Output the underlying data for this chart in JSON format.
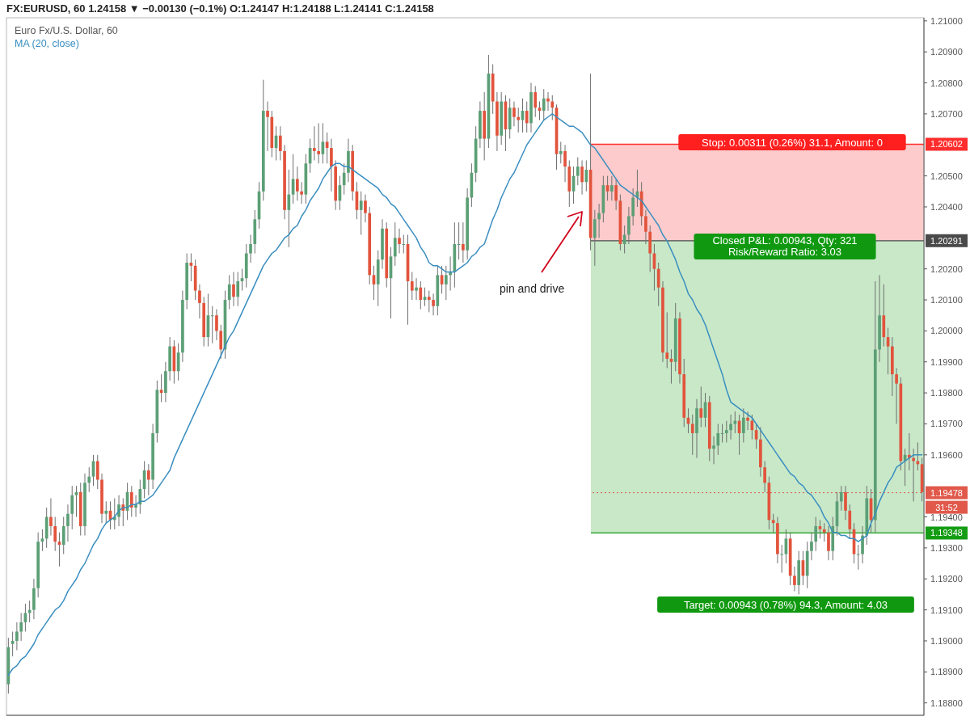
{
  "chart_data": {
    "type": "candlestick",
    "title": "FX:EURUSD, 60  1.24158 ▼ −0.00130 (−0.1%)  O:1.24147  H:1.24188  L:1.24141  C:1.24158",
    "subtitle": "Euro Fx/U.S. Dollar, 60",
    "categories": [
      null,
      null,
      null,
      null,
      null,
      null,
      null,
      null,
      null,
      null,
      null,
      null,
      null,
      null,
      null,
      null,
      null,
      null,
      null,
      null,
      null,
      null,
      null,
      null,
      null,
      null,
      null,
      null,
      null,
      null,
      null,
      null,
      null,
      null,
      null,
      null,
      null,
      null,
      null,
      null,
      null,
      null,
      null,
      null,
      null,
      null,
      null,
      null,
      null,
      null,
      null,
      null,
      null,
      null,
      null,
      null,
      null,
      null,
      null,
      null,
      null,
      null,
      null,
      null,
      null,
      null,
      null,
      null,
      null,
      null,
      null,
      null,
      null,
      null,
      null,
      null,
      null,
      null,
      null,
      null,
      null,
      null,
      null,
      null,
      null,
      null,
      null,
      null,
      null,
      null,
      null,
      null,
      null,
      null,
      null,
      null,
      null,
      null,
      null,
      null,
      null,
      null,
      null,
      null,
      null,
      null,
      null,
      null,
      null,
      null,
      null,
      null,
      null,
      null,
      null,
      null,
      null,
      null,
      null,
      null,
      null,
      null,
      null,
      null,
      null,
      null,
      null,
      null,
      null,
      null,
      null,
      null,
      null,
      null,
      null,
      null,
      null,
      null,
      null,
      null,
      null,
      null,
      null,
      null,
      null,
      null,
      null,
      null,
      null,
      null,
      null,
      null,
      null,
      null,
      null,
      null,
      null,
      null,
      null,
      null,
      null,
      null,
      null,
      null,
      null,
      null,
      null,
      null,
      null,
      null,
      null,
      null,
      null,
      null,
      null,
      null,
      null,
      null,
      null,
      null,
      null,
      null,
      null,
      null,
      null,
      null,
      null,
      null,
      null,
      null,
      null,
      null,
      null,
      null,
      null,
      null,
      null,
      null,
      null,
      null,
      null,
      null,
      null,
      null,
      null,
      null,
      null,
      null,
      null,
      null,
      null,
      null,
      null,
      null,
      null,
      null
    ],
    "ohlc": [
      [
        1.1886,
        1.1901,
        1.1883,
        1.1898
      ],
      [
        1.1899,
        1.1903,
        1.1895,
        1.19
      ],
      [
        1.19,
        1.1906,
        1.1897,
        1.1903
      ],
      [
        1.1903,
        1.1909,
        1.19,
        1.1906
      ],
      [
        1.1906,
        1.1912,
        1.1903,
        1.1909
      ],
      [
        1.1909,
        1.1913,
        1.1906,
        1.191
      ],
      [
        1.191,
        1.192,
        1.1907,
        1.1917
      ],
      [
        1.1917,
        1.1935,
        1.1914,
        1.1932
      ],
      [
        1.1932,
        1.1936,
        1.1929,
        1.1933
      ],
      [
        1.1933,
        1.1943,
        1.193,
        1.194
      ],
      [
        1.194,
        1.1946,
        1.1934,
        1.1937
      ],
      [
        1.1937,
        1.194,
        1.1929,
        1.1932
      ],
      [
        1.1932,
        1.1935,
        1.1924,
        1.1931
      ],
      [
        1.1931,
        1.194,
        1.1928,
        1.1937
      ],
      [
        1.1937,
        1.1944,
        1.1932,
        1.1941
      ],
      [
        1.1941,
        1.195,
        1.1936,
        1.1947
      ],
      [
        1.1947,
        1.195,
        1.194,
        1.1948
      ],
      [
        1.1948,
        1.1951,
        1.1934,
        1.1937
      ],
      [
        1.1937,
        1.1954,
        1.1934,
        1.1951
      ],
      [
        1.1951,
        1.1956,
        1.1948,
        1.1953
      ],
      [
        1.1953,
        1.196,
        1.195,
        1.1958
      ],
      [
        1.1958,
        1.196,
        1.1949,
        1.1952
      ],
      [
        1.1952,
        1.1954,
        1.1938,
        1.1941
      ],
      [
        1.1941,
        1.1945,
        1.1938,
        1.1942
      ],
      [
        1.1942,
        1.1945,
        1.1936,
        1.1939
      ],
      [
        1.1939,
        1.1946,
        1.1936,
        1.194
      ],
      [
        1.194,
        1.1947,
        1.1937,
        1.1944
      ],
      [
        1.1944,
        1.1946,
        1.1937,
        1.1942
      ],
      [
        1.1942,
        1.1951,
        1.1939,
        1.1948
      ],
      [
        1.1948,
        1.195,
        1.194,
        1.1943
      ],
      [
        1.1943,
        1.1947,
        1.194,
        1.1944
      ],
      [
        1.1944,
        1.1952,
        1.1941,
        1.1949
      ],
      [
        1.1949,
        1.1958,
        1.1946,
        1.1955
      ],
      [
        1.1955,
        1.1957,
        1.1947,
        1.1952
      ],
      [
        1.1952,
        1.197,
        1.1949,
        1.1967
      ],
      [
        1.1967,
        1.1984,
        1.1964,
        1.1981
      ],
      [
        1.1981,
        1.1986,
        1.1977,
        1.198
      ],
      [
        1.198,
        1.199,
        1.1977,
        1.1987
      ],
      [
        1.1987,
        1.1998,
        1.1984,
        1.1995
      ],
      [
        1.1995,
        1.1997,
        1.1983,
        1.1987
      ],
      [
        1.1987,
        1.1996,
        1.1984,
        1.1993
      ],
      [
        1.1993,
        1.2013,
        1.199,
        1.201
      ],
      [
        1.201,
        1.2025,
        1.2007,
        1.2022
      ],
      [
        1.2022,
        1.2025,
        1.2016,
        1.2021
      ],
      [
        1.2021,
        1.2023,
        1.201,
        1.2013
      ],
      [
        1.2013,
        1.2015,
        1.2004,
        1.2009
      ],
      [
        1.2009,
        1.2011,
        1.1995,
        1.1998
      ],
      [
        1.1998,
        1.2012,
        1.1995,
        1.2005
      ],
      [
        1.2005,
        1.2008,
        1.1996,
        1.2005
      ],
      [
        1.2005,
        1.2007,
        1.1997,
        1.2
      ],
      [
        1.2,
        1.2002,
        1.1991,
        1.1994
      ],
      [
        1.1994,
        1.2013,
        1.1991,
        1.201
      ],
      [
        1.201,
        1.2018,
        1.2007,
        1.2015
      ],
      [
        1.2015,
        1.2019,
        1.2008,
        1.2011
      ],
      [
        1.2011,
        1.2019,
        1.2008,
        1.2016
      ],
      [
        1.2016,
        1.202,
        1.2013,
        1.2017
      ],
      [
        1.2017,
        1.2028,
        1.2014,
        1.2025
      ],
      [
        1.2025,
        1.2031,
        1.2022,
        1.2028
      ],
      [
        1.2028,
        1.2039,
        1.2025,
        1.2036
      ],
      [
        1.2036,
        1.2048,
        1.2033,
        1.2045
      ],
      [
        1.2045,
        1.2081,
        1.2042,
        1.2071
      ],
      [
        1.2071,
        1.2074,
        1.2058,
        1.2069
      ],
      [
        1.2069,
        1.2071,
        1.2056,
        1.2059
      ],
      [
        1.2059,
        1.2066,
        1.2055,
        1.2063
      ],
      [
        1.2063,
        1.2066,
        1.2055,
        1.2058
      ],
      [
        1.2058,
        1.206,
        1.2036,
        1.2039
      ],
      [
        1.2039,
        1.2052,
        1.2027,
        1.2044
      ],
      [
        1.2044,
        1.2057,
        1.2041,
        1.2049
      ],
      [
        1.2049,
        1.2053,
        1.2042,
        1.2045
      ],
      [
        1.2045,
        1.2048,
        1.2041,
        1.2044
      ],
      [
        1.2044,
        1.2057,
        1.2041,
        1.2054
      ],
      [
        1.2054,
        1.2062,
        1.2051,
        1.2059
      ],
      [
        1.2059,
        1.2066,
        1.2055,
        1.2058
      ],
      [
        1.2058,
        1.2067,
        1.2054,
        1.2057
      ],
      [
        1.2057,
        1.2067,
        1.2054,
        1.2061
      ],
      [
        1.2061,
        1.2064,
        1.2054,
        1.2059
      ],
      [
        1.2059,
        1.2062,
        1.2045,
        1.2053
      ],
      [
        1.2053,
        1.2055,
        1.2039,
        1.2042
      ],
      [
        1.2042,
        1.205,
        1.2039,
        1.2047
      ],
      [
        1.2047,
        1.2054,
        1.2044,
        1.2051
      ],
      [
        1.2051,
        1.2062,
        1.2048,
        1.2058
      ],
      [
        1.2058,
        1.206,
        1.2042,
        1.2045
      ],
      [
        1.2045,
        1.2048,
        1.2036,
        1.2039
      ],
      [
        1.2039,
        1.2045,
        1.2031,
        1.2042
      ],
      [
        1.2042,
        1.2044,
        1.2035,
        1.2038
      ],
      [
        1.2038,
        1.204,
        1.2015,
        1.2018
      ],
      [
        1.2018,
        1.2021,
        1.201,
        1.2015
      ],
      [
        1.2015,
        1.2026,
        1.2008,
        1.2023
      ],
      [
        1.2023,
        1.2036,
        1.202,
        1.2033
      ],
      [
        1.2033,
        1.2035,
        1.2014,
        1.2017
      ],
      [
        1.2017,
        1.2027,
        1.2004,
        1.2024
      ],
      [
        1.2024,
        1.2035,
        1.2021,
        1.203
      ],
      [
        1.203,
        1.2033,
        1.2025,
        1.2028
      ],
      [
        1.2028,
        1.2031,
        1.2025,
        1.2028
      ],
      [
        1.2028,
        1.2031,
        1.2002,
        1.2016
      ],
      [
        1.2016,
        1.2019,
        1.201,
        1.2013
      ],
      [
        1.2013,
        1.2017,
        1.201,
        1.2014
      ],
      [
        1.2014,
        1.2016,
        1.2007,
        1.201
      ],
      [
        1.201,
        1.2014,
        1.2008,
        1.2011
      ],
      [
        1.2011,
        1.2013,
        1.2006,
        1.201
      ],
      [
        1.201,
        1.2012,
        1.2005,
        1.2008
      ],
      [
        1.2008,
        1.2021,
        1.2005,
        1.2018
      ],
      [
        1.2018,
        1.2021,
        1.2012,
        1.2015
      ],
      [
        1.2015,
        1.2021,
        1.201,
        1.2018
      ],
      [
        1.2018,
        1.2024,
        1.2013,
        1.2019
      ],
      [
        1.2019,
        1.2035,
        1.2014,
        1.2028
      ],
      [
        1.2028,
        1.2035,
        1.2023,
        1.2028
      ],
      [
        1.2028,
        1.2035,
        1.2022,
        1.2026
      ],
      [
        1.2026,
        1.2046,
        1.2023,
        1.2043
      ],
      [
        1.2043,
        1.2054,
        1.204,
        1.2051
      ],
      [
        1.2051,
        1.2066,
        1.2048,
        1.2062
      ],
      [
        1.2062,
        1.2074,
        1.2059,
        1.2071
      ],
      [
        1.2071,
        1.2077,
        1.2055,
        1.2062
      ],
      [
        1.2062,
        1.2089,
        1.2059,
        1.2083
      ],
      [
        1.2083,
        1.2086,
        1.207,
        1.2074
      ],
      [
        1.2074,
        1.2077,
        1.2058,
        1.2063
      ],
      [
        1.2063,
        1.2077,
        1.206,
        1.2074
      ],
      [
        1.2074,
        1.2076,
        1.2058,
        1.2065
      ],
      [
        1.2065,
        1.2075,
        1.2062,
        1.2072
      ],
      [
        1.2072,
        1.2074,
        1.2066,
        1.2069
      ],
      [
        1.2069,
        1.2072,
        1.2064,
        1.2068
      ],
      [
        1.2068,
        1.2075,
        1.2064,
        1.2071
      ],
      [
        1.2071,
        1.2074,
        1.2064,
        1.2067
      ],
      [
        1.2067,
        1.208,
        1.2064,
        1.2077
      ],
      [
        1.2077,
        1.2079,
        1.2069,
        1.2072
      ],
      [
        1.2072,
        1.2074,
        1.2068,
        1.2071
      ],
      [
        1.2071,
        1.2078,
        1.2068,
        1.2075
      ],
      [
        1.2075,
        1.2077,
        1.2071,
        1.2074
      ],
      [
        1.2074,
        1.2076,
        1.2068,
        1.2072
      ],
      [
        1.2072,
        1.2073,
        1.2052,
        1.2057
      ],
      [
        1.2057,
        1.2061,
        1.2054,
        1.2058
      ],
      [
        1.2058,
        1.206,
        1.2048,
        1.2053
      ],
      [
        1.2053,
        1.2055,
        1.204,
        1.2045
      ],
      [
        1.2045,
        1.2053,
        1.2041,
        1.205
      ],
      [
        1.205,
        1.2056,
        1.2047,
        1.2053
      ],
      [
        1.2053,
        1.2055,
        1.2044,
        1.2048
      ],
      [
        1.2048,
        1.2055,
        1.2045,
        1.2052
      ],
      [
        1.2052,
        1.2083,
        1.2026,
        1.203
      ],
      [
        1.203,
        1.2039,
        1.2021,
        1.2036
      ],
      [
        1.2036,
        1.2041,
        1.203,
        1.2038
      ],
      [
        1.2038,
        1.205,
        1.2035,
        1.2047
      ],
      [
        1.2047,
        1.205,
        1.2042,
        1.2045
      ],
      [
        1.2045,
        1.205,
        1.2042,
        1.2047
      ],
      [
        1.2047,
        1.2049,
        1.2039,
        1.2042
      ],
      [
        1.2042,
        1.2044,
        1.2026,
        1.2028
      ],
      [
        1.2028,
        1.2034,
        1.2025,
        1.2031
      ],
      [
        1.2031,
        1.204,
        1.2028,
        1.2037
      ],
      [
        1.2037,
        1.2046,
        1.2034,
        1.2043
      ],
      [
        1.2043,
        1.2052,
        1.204,
        1.2045
      ],
      [
        1.2045,
        1.2048,
        1.2034,
        1.2037
      ],
      [
        1.2037,
        1.2039,
        1.2028,
        1.2032
      ],
      [
        1.2032,
        1.2034,
        1.2019,
        1.2025
      ],
      [
        1.2025,
        1.2028,
        1.2013,
        1.202
      ],
      [
        1.202,
        1.2022,
        1.2008,
        1.2014
      ],
      [
        1.2014,
        1.2016,
        1.199,
        1.1993
      ],
      [
        1.1993,
        1.2006,
        1.1988,
        1.1991
      ],
      [
        1.1991,
        1.1994,
        1.1983,
        1.199
      ],
      [
        1.199,
        1.2009,
        1.1987,
        1.2004
      ],
      [
        1.2004,
        1.2006,
        1.1983,
        1.1986
      ],
      [
        1.1986,
        1.1991,
        1.1969,
        1.1972
      ],
      [
        1.1972,
        1.1975,
        1.1967,
        1.197
      ],
      [
        1.197,
        1.1973,
        1.196,
        1.1967
      ],
      [
        1.1967,
        1.1978,
        1.1959,
        1.1975
      ],
      [
        1.1975,
        1.1982,
        1.1969,
        1.1972
      ],
      [
        1.1972,
        1.198,
        1.1969,
        1.1977
      ],
      [
        1.1977,
        1.1979,
        1.1958,
        1.1962
      ],
      [
        1.1962,
        1.1966,
        1.1957,
        1.1963
      ],
      [
        1.1963,
        1.197,
        1.196,
        1.1967
      ],
      [
        1.1967,
        1.197,
        1.1964,
        1.1967
      ],
      [
        1.1967,
        1.1971,
        1.1964,
        1.1968
      ],
      [
        1.1968,
        1.1973,
        1.1965,
        1.197
      ],
      [
        1.197,
        1.1974,
        1.1967,
        1.1971
      ],
      [
        1.1971,
        1.1973,
        1.196,
        1.1967
      ],
      [
        1.1967,
        1.1975,
        1.1964,
        1.1972
      ],
      [
        1.1972,
        1.1974,
        1.1968,
        1.1971
      ],
      [
        1.1971,
        1.1973,
        1.1965,
        1.1968
      ],
      [
        1.1968,
        1.197,
        1.1962,
        1.1965
      ],
      [
        1.1965,
        1.1969,
        1.1953,
        1.1956
      ],
      [
        1.1956,
        1.1958,
        1.1948,
        1.1951
      ],
      [
        1.1951,
        1.1953,
        1.1936,
        1.1939
      ],
      [
        1.1939,
        1.1941,
        1.1935,
        1.1938
      ],
      [
        1.1938,
        1.194,
        1.1925,
        1.1928
      ],
      [
        1.1928,
        1.1931,
        1.1922,
        1.1928
      ],
      [
        1.1928,
        1.1936,
        1.1925,
        1.1933
      ],
      [
        1.1933,
        1.1935,
        1.1918,
        1.1921
      ],
      [
        1.1921,
        1.1924,
        1.1916,
        1.1918
      ],
      [
        1.1918,
        1.1929,
        1.1915,
        1.1926
      ],
      [
        1.1926,
        1.1929,
        1.1918,
        1.1921
      ],
      [
        1.1921,
        1.1932,
        1.1917,
        1.1929
      ],
      [
        1.1929,
        1.1935,
        1.1926,
        1.1932
      ],
      [
        1.1932,
        1.194,
        1.1929,
        1.1937
      ],
      [
        1.1937,
        1.1939,
        1.1933,
        1.1936
      ],
      [
        1.1936,
        1.1938,
        1.1932,
        1.1935
      ],
      [
        1.1935,
        1.1937,
        1.1926,
        1.1929
      ],
      [
        1.1929,
        1.194,
        1.1926,
        1.1937
      ],
      [
        1.1937,
        1.1948,
        1.1934,
        1.1945
      ],
      [
        1.1945,
        1.195,
        1.1942,
        1.1948
      ],
      [
        1.1948,
        1.195,
        1.1939,
        1.1942
      ],
      [
        1.1942,
        1.1944,
        1.1933,
        1.1936
      ],
      [
        1.1936,
        1.1938,
        1.1925,
        1.1928
      ],
      [
        1.1928,
        1.1931,
        1.1923,
        1.1928
      ],
      [
        1.1928,
        1.1937,
        1.1925,
        1.1934
      ],
      [
        1.1934,
        1.195,
        1.1931,
        1.1946
      ],
      [
        1.1946,
        1.1949,
        1.1935,
        1.1939
      ],
      [
        1.1939,
        1.2016,
        1.1935,
        1.1994
      ],
      [
        1.1994,
        1.2018,
        1.199,
        1.2005
      ],
      [
        1.2005,
        1.2015,
        1.1995,
        1.1998
      ],
      [
        1.1998,
        1.2001,
        1.1986,
        1.1995
      ],
      [
        1.1995,
        1.1998,
        1.1979,
        1.1986
      ],
      [
        1.1986,
        1.1988,
        1.197,
        1.1983
      ],
      [
        1.1983,
        1.1985,
        1.1955,
        1.1958
      ],
      [
        1.1958,
        1.1962,
        1.195,
        1.196
      ],
      [
        1.196,
        1.1967,
        1.1955,
        1.1959
      ],
      [
        1.1959,
        1.1962,
        1.1945,
        1.1958
      ],
      [
        1.1958,
        1.1964,
        1.1955,
        1.1957
      ],
      [
        1.1957,
        1.1959,
        1.1945,
        1.1948
      ]
    ],
    "series": [
      {
        "name": "MA (20, close)",
        "type": "line",
        "color": "#3a8ec0",
        "values": [
          1.1889,
          1.1891,
          1.1892,
          1.1894,
          1.1895,
          1.1897,
          1.1899,
          1.1902,
          1.1904,
          1.1906,
          1.1908,
          1.191,
          1.1911,
          1.1913,
          1.1916,
          1.1918,
          1.192,
          1.1923,
          1.1925,
          1.1928,
          1.1931,
          1.1933,
          1.1936,
          1.1938,
          1.1939,
          1.194,
          1.1942,
          1.1943,
          1.1943,
          1.1944,
          1.1944,
          1.1945,
          1.1945,
          1.1946,
          1.1947,
          1.1949,
          1.1951,
          1.1953,
          1.1955,
          1.1959,
          1.1962,
          1.1965,
          1.1968,
          1.1971,
          1.1974,
          1.1977,
          1.198,
          1.1983,
          1.1986,
          1.1989,
          1.1992,
          1.1995,
          1.1998,
          1.2,
          1.2003,
          1.2006,
          1.2009,
          1.2012,
          1.2015,
          1.2018,
          1.2021,
          1.2023,
          1.2025,
          1.2026,
          1.2028,
          1.203,
          1.2031,
          1.2033,
          1.2034,
          1.2037,
          1.2039,
          1.2042,
          1.2044,
          1.2046,
          1.2049,
          1.2051,
          1.2053,
          1.2054,
          1.2054,
          1.2053,
          1.2053,
          1.2052,
          1.2051,
          1.205,
          1.2049,
          1.2048,
          1.2047,
          1.2046,
          1.2044,
          1.2043,
          1.2041,
          1.204,
          1.2038,
          1.2036,
          1.2034,
          1.2032,
          1.203,
          1.2027,
          1.2025,
          1.2022,
          1.2021,
          1.2021,
          1.202,
          1.2019,
          1.2019,
          1.2019,
          1.202,
          1.2021,
          1.2022,
          1.2024,
          1.2025,
          1.2027,
          1.2028,
          1.2032,
          1.2036,
          1.2039,
          1.2043,
          1.2046,
          1.2049,
          1.2051,
          1.2054,
          1.2057,
          1.206,
          1.2062,
          1.2064,
          1.2066,
          1.2068,
          1.2069,
          1.207,
          1.2069,
          1.2068,
          1.2067,
          1.2066,
          1.2066,
          1.2065,
          1.2064,
          1.2062,
          1.206,
          1.2059,
          1.2057,
          1.2055,
          1.2053,
          1.2051,
          1.2049,
          1.2047,
          1.2046,
          1.2045,
          1.2044,
          1.2043,
          1.2042,
          1.204,
          1.2038,
          1.2036,
          1.2034,
          1.2031,
          1.2029,
          1.2026,
          1.2023,
          1.2019,
          1.2016,
          1.2012,
          1.201,
          1.2007,
          1.2005,
          1.2002,
          1.1998,
          1.1994,
          1.199,
          1.1986,
          1.1981,
          1.1977,
          1.1976,
          1.1975,
          1.1974,
          1.1973,
          1.1972,
          1.197,
          1.1968,
          1.1966,
          1.1964,
          1.1962,
          1.196,
          1.1958,
          1.1956,
          1.1954,
          1.1953,
          1.1951,
          1.195,
          1.1948,
          1.1947,
          1.1945,
          1.1943,
          1.194,
          1.1938,
          1.1935,
          1.1935,
          1.1934,
          1.1934,
          1.1933,
          1.1933,
          1.1932,
          1.1933,
          1.1934,
          1.1938,
          1.1941,
          1.1945,
          1.1948,
          1.1951,
          1.1953,
          1.1956,
          1.1957,
          1.1958,
          1.1959,
          1.196,
          1.196,
          1.196
        ]
      }
    ],
    "ylim": [
      1.1876,
      1.2101
    ],
    "yticks": [
      {
        "value": 1.188,
        "label": "1.18800"
      },
      {
        "value": 1.189,
        "label": "1.18900"
      },
      {
        "value": 1.19,
        "label": "1.19000"
      },
      {
        "value": 1.191,
        "label": "1.19100"
      },
      {
        "value": 1.192,
        "label": "1.19200"
      },
      {
        "value": 1.193,
        "label": "1.19300"
      },
      {
        "value": 1.194,
        "label": "1.19400"
      },
      {
        "value": 1.196,
        "label": "1.19600"
      },
      {
        "value": 1.197,
        "label": "1.19700"
      },
      {
        "value": 1.198,
        "label": "1.19800"
      },
      {
        "value": 1.199,
        "label": "1.19900"
      },
      {
        "value": 1.2,
        "label": "1.20000"
      },
      {
        "value": 1.201,
        "label": "1.20100"
      },
      {
        "value": 1.202,
        "label": "1.20200"
      },
      {
        "value": 1.204,
        "label": "1.20400"
      },
      {
        "value": 1.205,
        "label": "1.20500"
      },
      {
        "value": 1.207,
        "label": "1.20700"
      },
      {
        "value": 1.208,
        "label": "1.20800"
      },
      {
        "value": 1.209,
        "label": "1.20900"
      },
      {
        "value": 1.21,
        "label": "1.21000"
      }
    ],
    "bands": [
      {
        "axis": "y",
        "from": 1.20291,
        "to": 1.20602,
        "color": "#fdcbcb"
      },
      {
        "axis": "y",
        "from": 1.19348,
        "to": 1.20291,
        "color": "#c8e8c8"
      }
    ],
    "ref_lines": [
      {
        "axis": "y",
        "value": 1.20602,
        "label": "1.20602",
        "color": "#ff2d2d"
      },
      {
        "axis": "y",
        "value": 1.20291,
        "label": "1.20291",
        "color": "#4a4a4a"
      },
      {
        "axis": "y",
        "value": 1.19478,
        "label": "1.19478",
        "color": "#e0594b",
        "line_style": "dotted"
      },
      {
        "axis": "y",
        "value": 1.19348,
        "label": "1.19348",
        "color": "#149c14"
      }
    ],
    "annotations": [
      "pin and drive",
      "Stop: 0.00311 (0.26%) 31.1, Amount: 0",
      "Closed P&L: 0.00943, Qty: 321",
      "Risk/Reward Ratio: 3.03",
      "Target: 0.00943 (0.78%) 94.3, Amount: 4.03",
      "31:52"
    ],
    "legend": "top left",
    "grid": false
  }
}
